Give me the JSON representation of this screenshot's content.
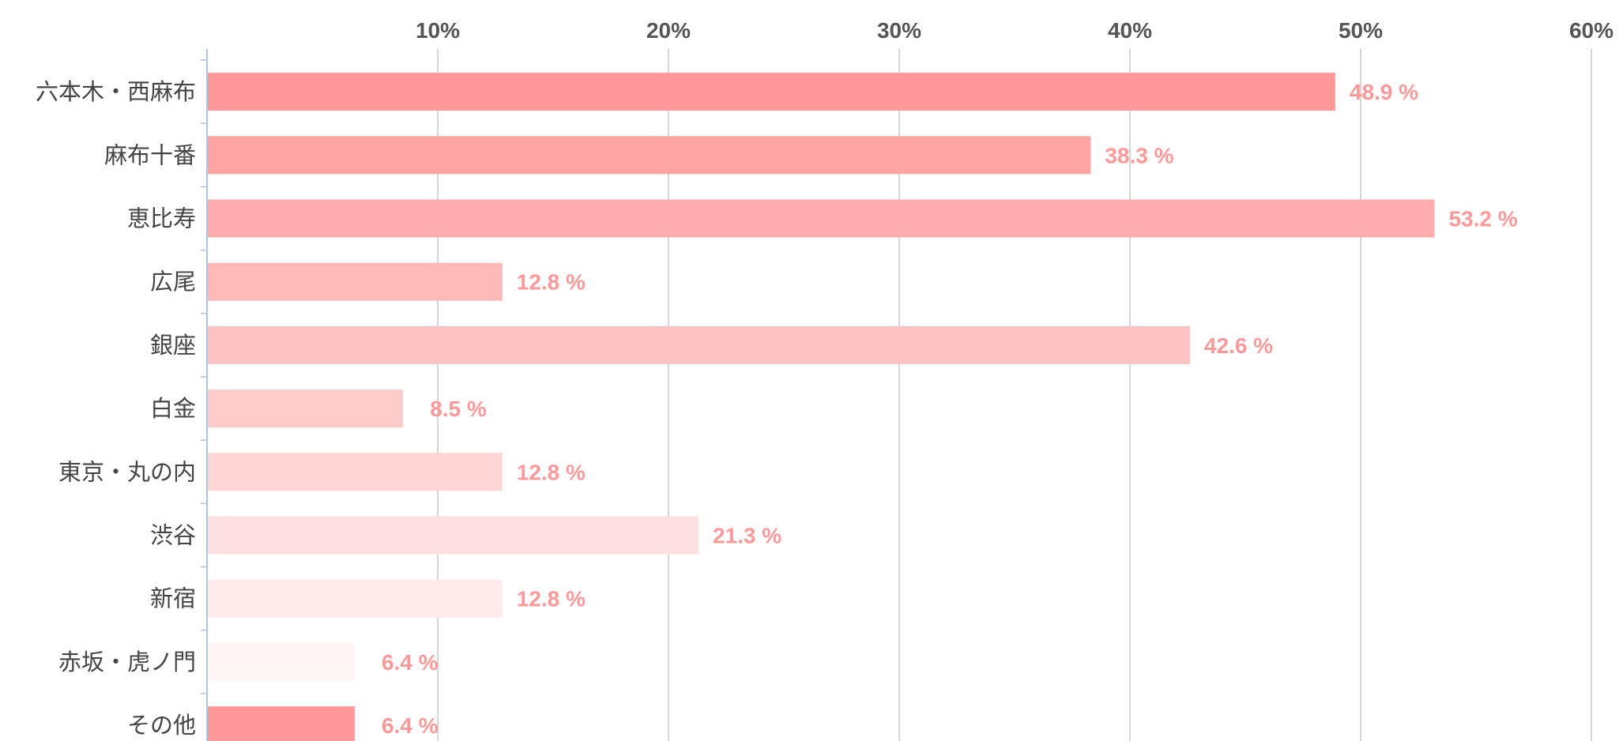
{
  "chart_data": {
    "type": "bar",
    "orientation": "horizontal",
    "categories": [
      "六本木・西麻布",
      "麻布十番",
      "恵比寿",
      "広尾",
      "銀座",
      "白金",
      "東京・丸の内",
      "渋谷",
      "新宿",
      "赤坂・虎ノ門",
      "その他"
    ],
    "values": [
      48.9,
      38.3,
      53.2,
      12.8,
      42.6,
      8.5,
      12.8,
      21.3,
      12.8,
      6.4,
      6.4
    ],
    "value_labels": [
      "48.9 %",
      "38.3 %",
      "53.2 %",
      "12.8 %",
      "42.6 %",
      "8.5 %",
      "12.8 %",
      "21.3 %",
      "12.8 %",
      "6.4 %",
      "6.4 %"
    ],
    "xticks": [
      10,
      20,
      30,
      40,
      50,
      60
    ],
    "xtick_labels": [
      "10%",
      "20%",
      "30%",
      "40%",
      "50%",
      "60%"
    ],
    "xlim": [
      0,
      60
    ],
    "x_axis_position": "top",
    "grid": true,
    "bar_colors": [
      "#ff9999",
      "#ffa3a3",
      "#ffadad",
      "#ffb8b8",
      "#ffc2c2",
      "#ffcccc",
      "#ffd6d6",
      "#ffe0e0",
      "#ffebeb",
      "#fff5f5",
      "#ff9999"
    ],
    "value_label_color": "#ff9999",
    "title": "",
    "xlabel": "",
    "ylabel": ""
  }
}
